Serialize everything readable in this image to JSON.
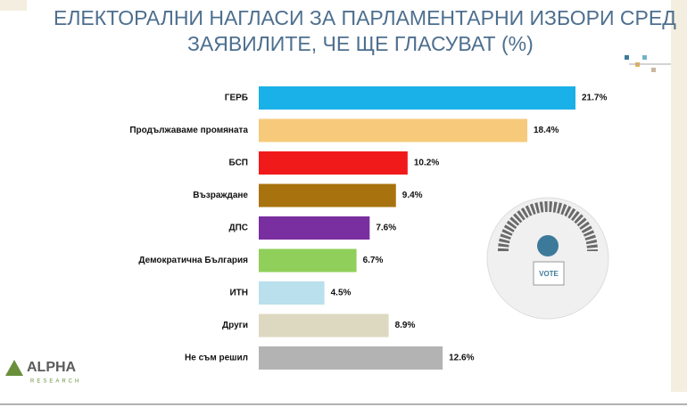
{
  "chart_data": {
    "type": "bar",
    "orientation": "horizontal",
    "title": [
      "ЕЛЕКТОРАЛНИ НАГЛАСИ ЗА ПАРЛАМЕНТАРНИ ИЗБОРИ СРЕД",
      "ЗАЯВИЛИТЕ, ЧЕ ЩЕ ГЛАСУВАТ (%)"
    ],
    "categories": [
      "ГЕРБ",
      "Продължаваме промяната",
      "БСП",
      "Възраждане",
      "ДПС",
      "Демократична България",
      "ИТН",
      "Други",
      "Не съм решил"
    ],
    "values": [
      21.7,
      18.4,
      10.2,
      9.4,
      7.6,
      6.7,
      4.5,
      8.9,
      12.6
    ],
    "value_labels": [
      "21.7%",
      "18.4%",
      "10.2%",
      "9.4%",
      "7.6%",
      "6.7%",
      "4.5%",
      "8.9%",
      "12.6%"
    ],
    "colors": [
      "#1ab0e8",
      "#f7c97a",
      "#f01a1a",
      "#a8730e",
      "#7a2fa0",
      "#8fcf5a",
      "#b9e0ec",
      "#ddd9c0",
      "#b3b3b3"
    ]
  },
  "logo": {
    "name": "ALPHA",
    "tagline": "RESEARCH"
  },
  "icon": {
    "label": "VOTE"
  }
}
